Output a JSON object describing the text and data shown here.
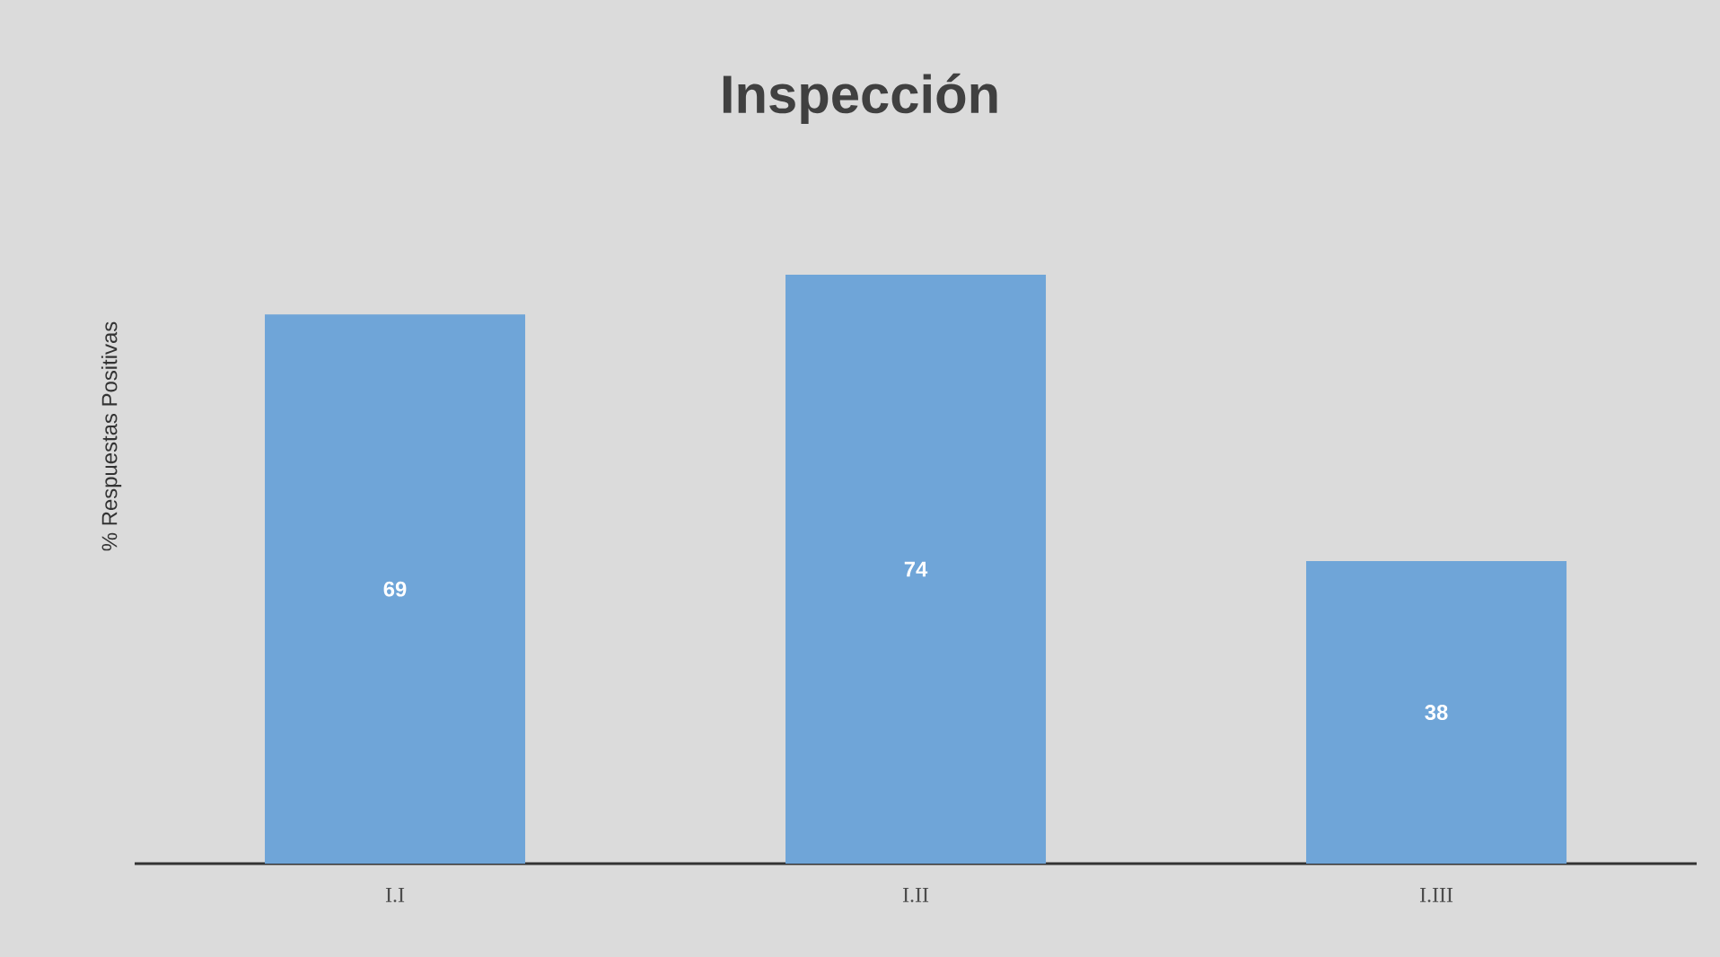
{
  "chart_data": {
    "type": "bar",
    "title": "Inspección",
    "ylabel": "% Respuestas Positivas",
    "categories": [
      "I.I",
      "I.II",
      "I.III"
    ],
    "values": [
      69,
      74,
      38
    ],
    "color": "#6fa5d8",
    "data_labels": true
  }
}
